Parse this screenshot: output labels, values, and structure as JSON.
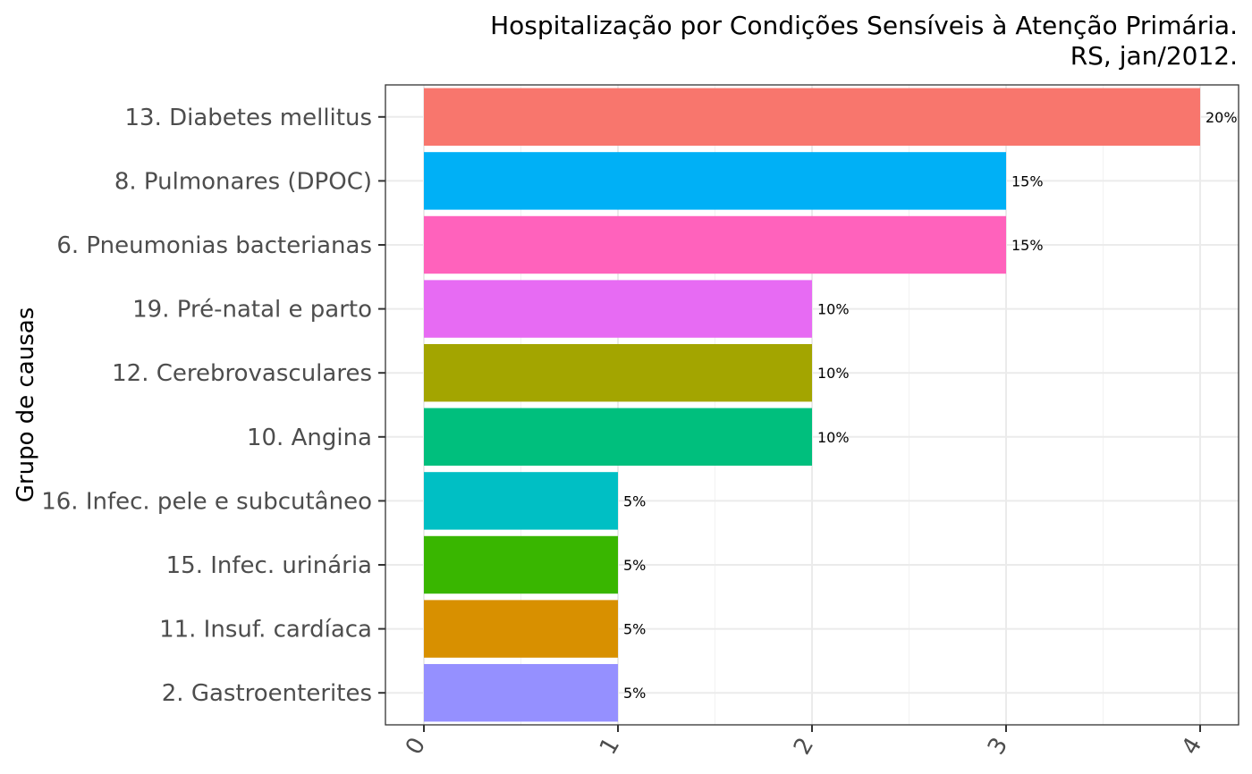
{
  "chart_data": {
    "type": "bar",
    "orientation": "horizontal",
    "title": "Hospitalização por Condições Sensíveis à Atenção Primária.",
    "subtitle": "RS, jan/2012.",
    "xlabel": "",
    "ylabel": "Grupo de causas",
    "xlim": [
      0,
      4
    ],
    "xticks": [
      0,
      1,
      2,
      3,
      4
    ],
    "grid": true,
    "legend": "none",
    "categories": [
      "13. Diabetes mellitus",
      "8. Pulmonares (DPOC)",
      "6. Pneumonias bacterianas",
      "19. Pré-natal e parto",
      "12. Cerebrovasculares",
      "10. Angina",
      "16. Infec. pele e subcutâneo",
      "15. Infec. urinária",
      "11. Insuf. cardíaca",
      "2. Gastroenterites"
    ],
    "values": [
      4,
      3,
      3,
      2,
      2,
      2,
      1,
      1,
      1,
      1
    ],
    "labels": [
      "20%",
      "15%",
      "15%",
      "10%",
      "10%",
      "10%",
      "5%",
      "5%",
      "5%",
      "5%"
    ],
    "colors": [
      "#F8766D",
      "#00B0F6",
      "#FF62BC",
      "#E76BF3",
      "#A3A500",
      "#00BF7D",
      "#00BFC4",
      "#39B600",
      "#D89000",
      "#9590FF"
    ]
  }
}
